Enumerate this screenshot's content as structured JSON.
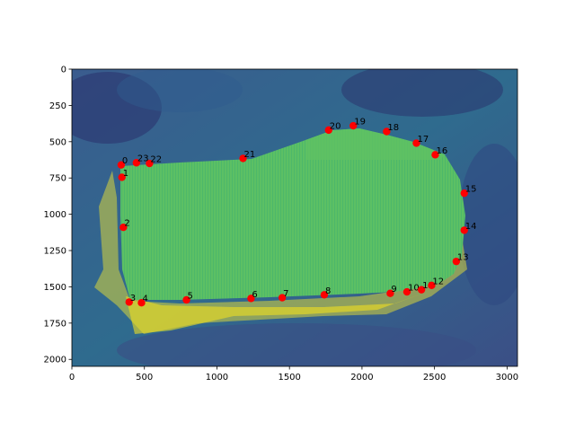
{
  "chart_data": {
    "type": "scatter",
    "title": "",
    "xlabel": "",
    "ylabel": "",
    "xlim": [
      0,
      3072
    ],
    "ylim": [
      2048,
      0
    ],
    "y_inverted": true,
    "grid": false,
    "legend": "none",
    "x_ticks": [
      0,
      500,
      1000,
      1500,
      2000,
      2500,
      3000
    ],
    "y_ticks": [
      0,
      250,
      500,
      750,
      1000,
      1250,
      1500,
      1750,
      2000
    ],
    "background": "grayscale microscopy image rendered with viridis colormap",
    "marker_color": "#ff0000",
    "points": [
      {
        "label": "0",
        "x": 340,
        "y": 660
      },
      {
        "label": "1",
        "x": 345,
        "y": 745
      },
      {
        "label": "2",
        "x": 355,
        "y": 1090
      },
      {
        "label": "3",
        "x": 395,
        "y": 1605
      },
      {
        "label": "4",
        "x": 480,
        "y": 1610
      },
      {
        "label": "5",
        "x": 790,
        "y": 1590
      },
      {
        "label": "6",
        "x": 1235,
        "y": 1580
      },
      {
        "label": "7",
        "x": 1450,
        "y": 1575
      },
      {
        "label": "8",
        "x": 1740,
        "y": 1555
      },
      {
        "label": "9",
        "x": 2195,
        "y": 1545
      },
      {
        "label": "10",
        "x": 2310,
        "y": 1535
      },
      {
        "label": "11",
        "x": 2410,
        "y": 1520
      },
      {
        "label": "12",
        "x": 2480,
        "y": 1490
      },
      {
        "label": "13",
        "x": 2650,
        "y": 1325
      },
      {
        "label": "14",
        "x": 2705,
        "y": 1110
      },
      {
        "label": "15",
        "x": 2705,
        "y": 855
      },
      {
        "label": "16",
        "x": 2505,
        "y": 590
      },
      {
        "label": "17",
        "x": 2375,
        "y": 510
      },
      {
        "label": "18",
        "x": 2170,
        "y": 430
      },
      {
        "label": "19",
        "x": 1940,
        "y": 390
      },
      {
        "label": "20",
        "x": 1770,
        "y": 420
      },
      {
        "label": "21",
        "x": 1180,
        "y": 615
      },
      {
        "label": "22",
        "x": 535,
        "y": 650
      },
      {
        "label": "23",
        "x": 445,
        "y": 645
      }
    ],
    "colors": {
      "image_dark": "#30366f",
      "image_mid": "#2a7f8e",
      "image_green": "#4fc06a",
      "image_bright": "#f0e020",
      "marker": "#ff0000"
    }
  }
}
